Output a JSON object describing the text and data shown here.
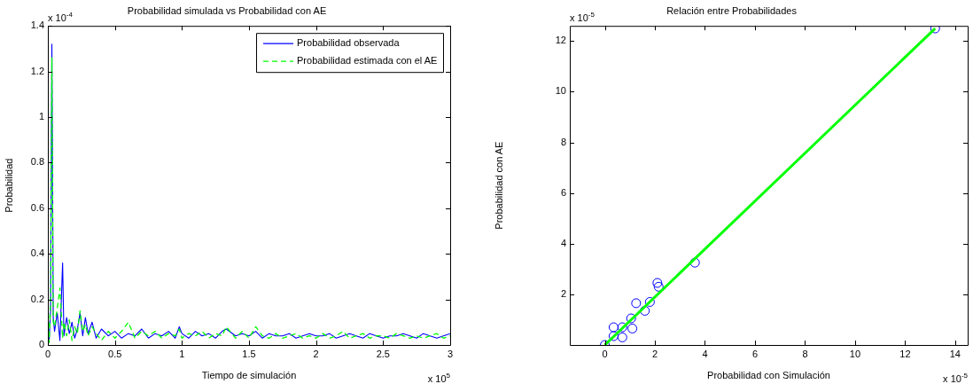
{
  "chart_data": [
    {
      "type": "line",
      "title": "Probabilidad simulada vs Probabilidad con AE",
      "xlabel": "Tiempo de simulación",
      "ylabel": "Probabilidad",
      "annotations": [
        "x 10$^{-4}$",
        "x 10$^{5}$"
      ],
      "x": [
        0,
        0.01,
        0.02,
        0.03,
        0.04,
        0.05,
        0.07,
        0.09,
        0.11,
        0.12,
        0.14,
        0.16,
        0.18,
        0.2,
        0.22,
        0.24,
        0.26,
        0.28,
        0.3,
        0.33,
        0.36,
        0.4,
        0.45,
        0.5,
        0.55,
        0.6,
        0.65,
        0.7,
        0.75,
        0.8,
        0.85,
        0.9,
        0.95,
        0.98,
        1.0,
        1.05,
        1.1,
        1.15,
        1.2,
        1.25,
        1.3,
        1.33,
        1.4,
        1.45,
        1.5,
        1.55,
        1.6,
        1.65,
        1.7,
        1.75,
        1.8,
        1.85,
        1.9,
        1.95,
        2.0,
        2.05,
        2.1,
        2.15,
        2.2,
        2.25,
        2.3,
        2.35,
        2.4,
        2.45,
        2.5,
        2.55,
        2.6,
        2.65,
        2.7,
        2.75,
        2.8,
        2.85,
        2.9,
        2.95,
        3.0
      ],
      "series": [
        {
          "name": "Probabilidad observada",
          "color": "#0000ff",
          "line_style": "solid",
          "values": [
            0.1,
            0.02,
            0.15,
            1.32,
            0.12,
            0.06,
            0.14,
            0.02,
            0.36,
            0.04,
            0.12,
            0.05,
            0.1,
            0.03,
            0.07,
            0.14,
            0.04,
            0.12,
            0.05,
            0.1,
            0.03,
            0.07,
            0.04,
            0.06,
            0.03,
            0.05,
            0.04,
            0.07,
            0.03,
            0.05,
            0.04,
            0.06,
            0.03,
            0.08,
            0.05,
            0.03,
            0.06,
            0.04,
            0.05,
            0.03,
            0.06,
            0.07,
            0.04,
            0.05,
            0.04,
            0.06,
            0.03,
            0.05,
            0.04,
            0.04,
            0.05,
            0.03,
            0.04,
            0.05,
            0.04,
            0.04,
            0.05,
            0.03,
            0.04,
            0.05,
            0.04,
            0.03,
            0.05,
            0.04,
            0.03,
            0.04,
            0.04,
            0.05,
            0.04,
            0.03,
            0.05,
            0.04,
            0.03,
            0.04,
            0.05
          ]
        },
        {
          "name": "Probabilidad estimada con el AE",
          "color": "#00ff00",
          "line_style": "dashed",
          "values": [
            0.22,
            0.01,
            0.18,
            1.26,
            0.1,
            0.08,
            0.16,
            0.25,
            0.03,
            0.1,
            0.04,
            0.11,
            0.02,
            0.08,
            0.05,
            0.15,
            0.06,
            0.09,
            0.04,
            0.08,
            0.05,
            0.02,
            0.06,
            0.03,
            0.06,
            0.1,
            0.03,
            0.06,
            0.04,
            0.06,
            0.03,
            0.05,
            0.04,
            0.07,
            0.03,
            0.05,
            0.04,
            0.06,
            0.03,
            0.05,
            0.04,
            0.08,
            0.03,
            0.06,
            0.03,
            0.08,
            0.04,
            0.03,
            0.05,
            0.03,
            0.04,
            0.05,
            0.03,
            0.04,
            0.03,
            0.05,
            0.03,
            0.04,
            0.06,
            0.03,
            0.04,
            0.05,
            0.03,
            0.04,
            0.04,
            0.03,
            0.05,
            0.04,
            0.03,
            0.04,
            0.03,
            0.04,
            0.05,
            0.03,
            0.04
          ]
        }
      ],
      "xlim": [
        0,
        3
      ],
      "xticks": [
        0,
        0.5,
        1,
        1.5,
        2,
        2.5,
        3
      ],
      "ylim": [
        0,
        1.4
      ],
      "yticks": [
        0,
        0.2,
        0.4,
        0.6,
        0.8,
        1,
        1.2,
        1.4
      ],
      "grid": false,
      "legend": "top right",
      "marker": "none"
    },
    {
      "type": "scatter",
      "title": "Relación entre Probabilidades",
      "xlabel": "Probabilidad con Simulación",
      "ylabel": "Probabilidad con AE",
      "annotations": [
        "x 10$^{-5}$",
        "x 10$^{-5}$"
      ],
      "series": [
        {
          "type": "scatter",
          "color": "#0000ff",
          "marker": "circle",
          "x": [
            13.2,
            3.6,
            2.1,
            2.15,
            1.25,
            1.8,
            1.6,
            1.05,
            1.1,
            0.7,
            0.7,
            0.35,
            0.35,
            0
          ],
          "values": [
            12.5,
            3.25,
            2.45,
            2.3,
            1.65,
            1.7,
            1.35,
            1.05,
            0.65,
            0.7,
            0.3,
            0.35,
            0.7,
            0
          ]
        },
        {
          "type": "line",
          "color": "#00ff00",
          "marker": "none",
          "x": [
            0,
            13.2
          ],
          "values": [
            0,
            12.5
          ]
        }
      ],
      "xlim": [
        -1.4,
        14.5
      ],
      "xticks": [
        0,
        2,
        4,
        6,
        8,
        10,
        12,
        14
      ],
      "ylim": [
        0,
        12.6
      ],
      "yticks": [
        2,
        4,
        6,
        8,
        10,
        12
      ],
      "grid": false,
      "legend": false
    }
  ]
}
